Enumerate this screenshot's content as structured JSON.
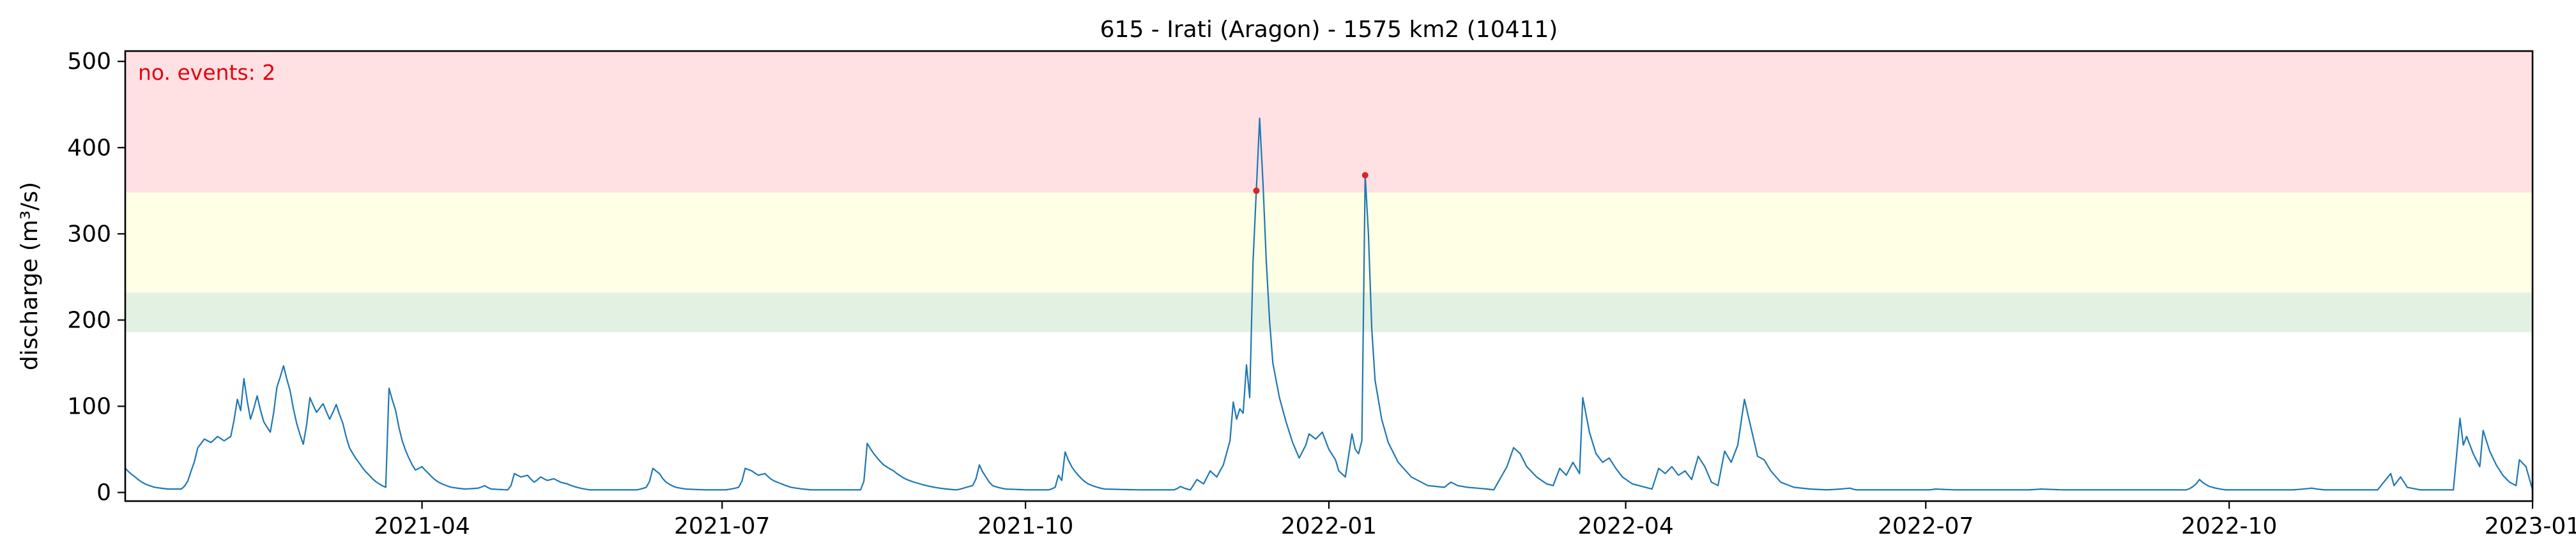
{
  "chart_data": {
    "type": "line",
    "title": "615 - Irati (Aragon) - 1575 km2 (10411)",
    "xlabel": "",
    "ylabel": "discharge (m³/s)",
    "annotation": "no. events: 2",
    "xlim": [
      "2021-01-01",
      "2023-01-01"
    ],
    "ylim": [
      -10,
      512
    ],
    "x_ticks": [
      "2021-04",
      "2021-07",
      "2021-10",
      "2022-01",
      "2022-04",
      "2022-07",
      "2022-10",
      "2023-01"
    ],
    "y_ticks": [
      0,
      100,
      200,
      300,
      400,
      500
    ],
    "grid": false,
    "threshold_bands": [
      {
        "from": 186,
        "to": 232,
        "color": "#e3f1e3"
      },
      {
        "from": 232,
        "to": 348,
        "color": "#feffe4"
      },
      {
        "from": 348,
        "to": 512,
        "color": "#ffe1e4"
      }
    ],
    "series": [
      {
        "color": "#1f77b4",
        "points": [
          [
            "2021-01-01",
            28
          ],
          [
            "2021-01-04",
            18
          ],
          [
            "2021-01-07",
            10
          ],
          [
            "2021-01-10",
            6
          ],
          [
            "2021-01-14",
            4
          ],
          [
            "2021-01-18",
            4
          ],
          [
            "2021-01-21",
            25
          ],
          [
            "2021-01-23",
            52
          ],
          [
            "2021-01-25",
            62
          ],
          [
            "2021-01-27",
            58
          ],
          [
            "2021-01-29",
            65
          ],
          [
            "2021-01-31",
            60
          ],
          [
            "2021-02-02",
            65
          ],
          [
            "2021-02-04",
            108
          ],
          [
            "2021-02-05",
            95
          ],
          [
            "2021-02-06",
            132
          ],
          [
            "2021-02-08",
            85
          ],
          [
            "2021-02-10",
            112
          ],
          [
            "2021-02-12",
            82
          ],
          [
            "2021-02-14",
            70
          ],
          [
            "2021-02-16",
            122
          ],
          [
            "2021-02-18",
            147
          ],
          [
            "2021-02-20",
            118
          ],
          [
            "2021-02-22",
            80
          ],
          [
            "2021-02-24",
            56
          ],
          [
            "2021-02-26",
            110
          ],
          [
            "2021-02-28",
            93
          ],
          [
            "2021-03-02",
            103
          ],
          [
            "2021-03-04",
            85
          ],
          [
            "2021-03-06",
            102
          ],
          [
            "2021-03-08",
            80
          ],
          [
            "2021-03-10",
            52
          ],
          [
            "2021-03-13",
            34
          ],
          [
            "2021-03-16",
            20
          ],
          [
            "2021-03-19",
            10
          ],
          [
            "2021-03-21",
            6
          ],
          [
            "2021-03-22",
            121
          ],
          [
            "2021-03-24",
            95
          ],
          [
            "2021-03-26",
            60
          ],
          [
            "2021-03-28",
            40
          ],
          [
            "2021-03-30",
            26
          ],
          [
            "2021-04-01",
            30
          ],
          [
            "2021-04-03",
            22
          ],
          [
            "2021-04-06",
            12
          ],
          [
            "2021-04-10",
            6
          ],
          [
            "2021-04-14",
            4
          ],
          [
            "2021-04-18",
            5
          ],
          [
            "2021-04-20",
            8
          ],
          [
            "2021-04-22",
            4
          ],
          [
            "2021-04-27",
            3
          ],
          [
            "2021-04-29",
            22
          ],
          [
            "2021-05-01",
            18
          ],
          [
            "2021-05-03",
            20
          ],
          [
            "2021-05-05",
            12
          ],
          [
            "2021-05-07",
            18
          ],
          [
            "2021-05-09",
            14
          ],
          [
            "2021-05-11",
            16
          ],
          [
            "2021-05-13",
            12
          ],
          [
            "2021-05-15",
            10
          ],
          [
            "2021-05-18",
            6
          ],
          [
            "2021-05-22",
            3
          ],
          [
            "2021-06-05",
            3
          ],
          [
            "2021-06-08",
            6
          ],
          [
            "2021-06-10",
            28
          ],
          [
            "2021-06-12",
            22
          ],
          [
            "2021-06-14",
            12
          ],
          [
            "2021-06-17",
            6
          ],
          [
            "2021-06-20",
            4
          ],
          [
            "2021-06-26",
            3
          ],
          [
            "2021-07-02",
            3
          ],
          [
            "2021-07-06",
            6
          ],
          [
            "2021-07-08",
            28
          ],
          [
            "2021-07-10",
            25
          ],
          [
            "2021-07-12",
            20
          ],
          [
            "2021-07-14",
            22
          ],
          [
            "2021-07-16",
            15
          ],
          [
            "2021-07-19",
            10
          ],
          [
            "2021-07-22",
            6
          ],
          [
            "2021-07-28",
            3
          ],
          [
            "2021-08-12",
            3
          ],
          [
            "2021-08-14",
            57
          ],
          [
            "2021-08-16",
            45
          ],
          [
            "2021-08-19",
            32
          ],
          [
            "2021-08-22",
            25
          ],
          [
            "2021-08-26",
            15
          ],
          [
            "2021-08-30",
            10
          ],
          [
            "2021-09-05",
            5
          ],
          [
            "2021-09-10",
            3
          ],
          [
            "2021-09-13",
            6
          ],
          [
            "2021-09-15",
            8
          ],
          [
            "2021-09-17",
            32
          ],
          [
            "2021-09-19",
            18
          ],
          [
            "2021-09-21",
            8
          ],
          [
            "2021-09-25",
            4
          ],
          [
            "2021-10-02",
            3
          ],
          [
            "2021-10-08",
            3
          ],
          [
            "2021-10-10",
            6
          ],
          [
            "2021-10-11",
            20
          ],
          [
            "2021-10-12",
            14
          ],
          [
            "2021-10-13",
            47
          ],
          [
            "2021-10-15",
            30
          ],
          [
            "2021-10-17",
            20
          ],
          [
            "2021-10-20",
            10
          ],
          [
            "2021-10-25",
            4
          ],
          [
            "2021-11-05",
            3
          ],
          [
            "2021-11-15",
            3
          ],
          [
            "2021-11-17",
            7
          ],
          [
            "2021-11-20",
            3
          ],
          [
            "2022-02-20",
            3
          ],
          [
            "2022-02-23",
            7
          ],
          [
            "2022-02-26",
            4
          ],
          [
            "2022-03-10",
            3
          ],
          [
            "2022-04-08",
            3
          ],
          [
            "2022-04-10",
            8
          ],
          [
            "2022-04-12",
            4
          ],
          [
            "2022-05-15",
            3
          ],
          [
            "2022-06-01",
            3
          ],
          [
            "2022-06-08",
            5
          ],
          [
            "2022-06-10",
            3
          ],
          [
            "2022-07-02",
            3
          ],
          [
            "2022-07-04",
            4
          ],
          [
            "2022-07-10",
            3
          ],
          [
            "2022-07-25",
            3
          ],
          [
            "2022-08-01",
            3
          ],
          [
            "2022-08-05",
            4
          ],
          [
            "2022-08-12",
            3
          ],
          [
            "2022-09-18",
            3
          ],
          [
            "2022-09-22",
            15
          ],
          [
            "2022-09-25",
            7
          ],
          [
            "2022-09-30",
            3
          ],
          [
            "2022-10-20",
            3
          ],
          [
            "2022-10-26",
            5
          ],
          [
            "2022-10-30",
            3
          ],
          [
            "2022-11-15",
            3
          ],
          [
            "2022-11-25",
            4
          ],
          [
            "2022-12-05",
            3
          ]
        ]
      }
    ],
    "events": [
      {
        "x": "2021-12-10",
        "y": 350,
        "color": "#d62728"
      },
      {
        "x": "2022-01-12",
        "y": 368,
        "color": "#d62728"
      }
    ]
  }
}
